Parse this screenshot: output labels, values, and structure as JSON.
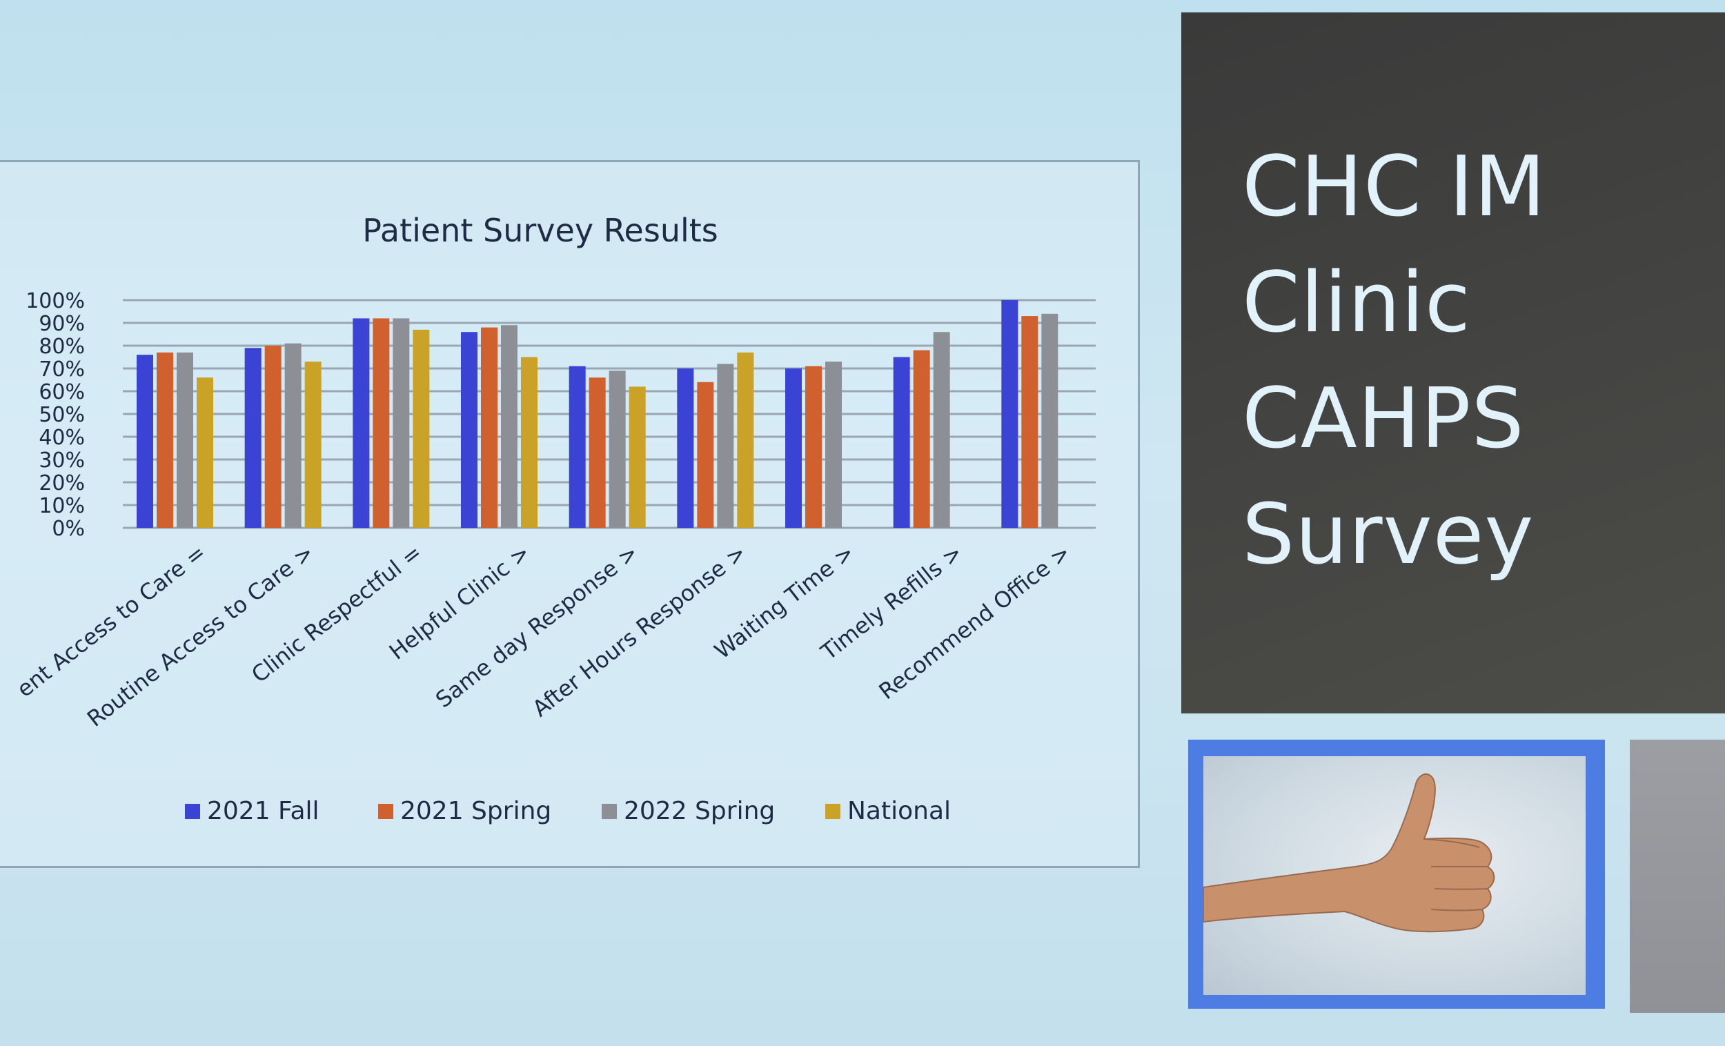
{
  "chart_data": {
    "type": "bar",
    "title": "Patient Survey Results",
    "categories": [
      "ent Access to Care =",
      "Routine Access to Care >",
      "Clinic Respectful =",
      "Helpful Clinic >",
      "Same day Response >",
      "After Hours Response >",
      "Waiting Time >",
      "Timely Refills >",
      "Recommend Office >"
    ],
    "series": [
      {
        "name": "2021 Fall",
        "color": "#3a43d4",
        "values": [
          76,
          79,
          92,
          86,
          71,
          70,
          70,
          75,
          100
        ]
      },
      {
        "name": "2021 Spring",
        "color": "#d0602e",
        "values": [
          77,
          80,
          92,
          88,
          66,
          64,
          71,
          78,
          93
        ]
      },
      {
        "name": "2022 Spring",
        "color": "#8c8f95",
        "values": [
          77,
          81,
          92,
          89,
          69,
          72,
          73,
          86,
          94
        ]
      },
      {
        "name": "National",
        "color": "#c9a227",
        "values": [
          66,
          73,
          87,
          75,
          62,
          77,
          null,
          null,
          null
        ]
      }
    ],
    "y_ticks": [
      "0%",
      "10%",
      "20%",
      "30%",
      "40%",
      "50%",
      "60%",
      "70%",
      "80%",
      "90%",
      "100%"
    ],
    "ylim": [
      0,
      100
    ],
    "grid": true,
    "legend_position": "bottom"
  },
  "side_title": {
    "lines": [
      "CHC IM",
      "Clinic",
      "CAHPS",
      "Survey"
    ]
  },
  "photo": {
    "icon": "thumbs-up-icon"
  }
}
